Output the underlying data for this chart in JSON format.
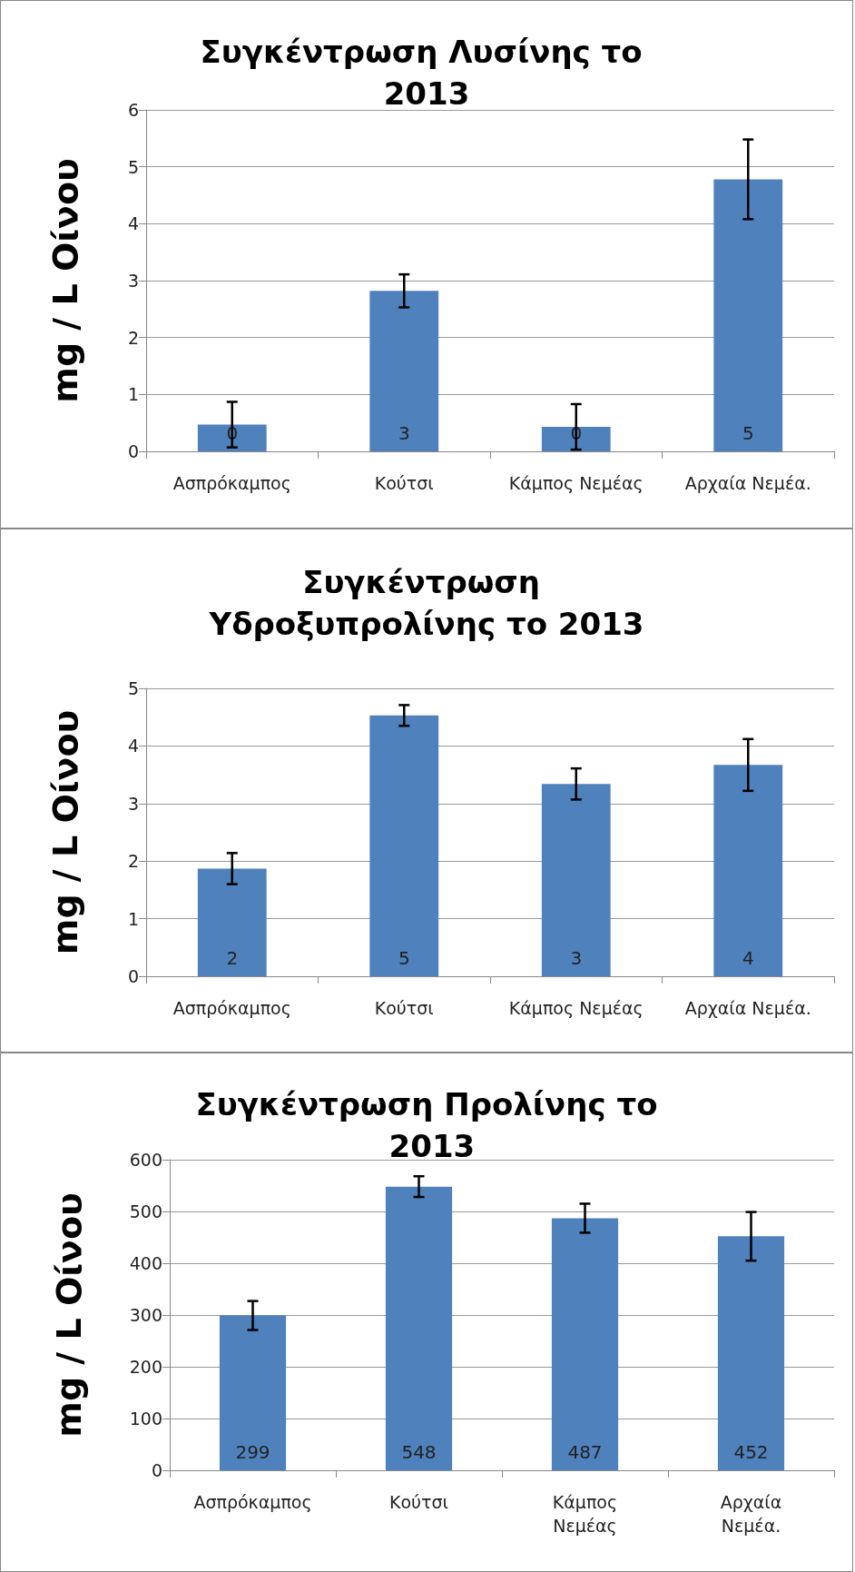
{
  "chart_data": [
    {
      "type": "bar",
      "title": "Συγκέντρωση Λυσίνης το 2013",
      "ylabel": "mg / L Οίνου",
      "categories": [
        "Ασπρόκαμπος",
        "Κούτσι",
        "Κάμπος Νεμέας",
        "Αρχαία Νεμέα."
      ],
      "values": [
        0.47,
        2.82,
        0.43,
        4.78
      ],
      "errors": [
        0.4,
        0.29,
        0.4,
        0.7
      ],
      "value_labels": [
        "0",
        "3",
        "0",
        "5"
      ],
      "color": "#4f81bd",
      "ylim": [
        0,
        6
      ],
      "yticks": [
        0,
        1,
        2,
        3,
        4,
        5,
        6
      ],
      "grid": "y"
    },
    {
      "type": "bar",
      "title": "Συγκέντρωση Υδροξυπρολίνης το 2013",
      "ylabel": "mg / L Οίνου",
      "categories": [
        "Ασπρόκαμπος",
        "Κούτσι",
        "Κάμπος Νεμέας",
        "Αρχαία Νεμέα."
      ],
      "values": [
        1.87,
        4.53,
        3.34,
        3.67
      ],
      "errors": [
        0.27,
        0.18,
        0.27,
        0.45
      ],
      "value_labels": [
        "2",
        "5",
        "3",
        "4"
      ],
      "color": "#4f81bd",
      "ylim": [
        0,
        5
      ],
      "yticks": [
        0,
        1,
        2,
        3,
        4,
        5
      ],
      "grid": "y"
    },
    {
      "type": "bar",
      "title": "Συγκέντρωση Προλίνης το 2013",
      "ylabel": "mg / L Οίνου",
      "categories": [
        "Ασπρόκαμπος",
        "Κούτσι",
        "Κάμπος Νεμέας",
        "Αρχαία Νεμέα."
      ],
      "values": [
        299,
        548,
        487,
        452
      ],
      "errors": [
        28,
        20,
        28,
        47
      ],
      "data_labels": true,
      "color": "#4f81bd",
      "ylim": [
        0,
        600
      ],
      "yticks": [
        0,
        100,
        200,
        300,
        400,
        500,
        600
      ],
      "grid": "y"
    }
  ]
}
